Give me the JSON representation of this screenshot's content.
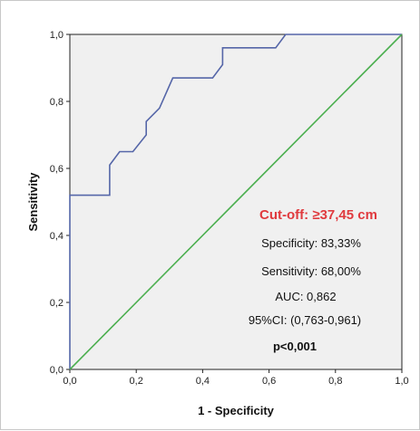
{
  "chart_data": {
    "type": "line",
    "xlabel": "1 - Specificity",
    "ylabel": "Sensitivity",
    "xlim": [
      0,
      1
    ],
    "ylim": [
      0,
      1
    ],
    "xticks": [
      "0,0",
      "0,2",
      "0,4",
      "0,6",
      "0,8",
      "1,0"
    ],
    "yticks": [
      "0,0",
      "0,2",
      "0,4",
      "0,6",
      "0,8",
      "1,0"
    ],
    "grid": false,
    "series": [
      {
        "color": "#5566a8",
        "x": [
          0,
          0,
          0.12,
          0.12,
          0.15,
          0.19,
          0.23,
          0.23,
          0.27,
          0.31,
          0.43,
          0.46,
          0.46,
          0.62,
          0.65,
          1.0
        ],
        "y": [
          0,
          0.52,
          0.52,
          0.61,
          0.65,
          0.65,
          0.7,
          0.74,
          0.78,
          0.87,
          0.87,
          0.91,
          0.96,
          0.96,
          1.0,
          1.0
        ]
      },
      {
        "color": "#4caf50",
        "x": [
          0,
          1
        ],
        "y": [
          0,
          1
        ]
      }
    ],
    "annotations": {
      "cutoff": "Cut-off: ≥37,45 cm",
      "specificity": "Specificity: 83,33%",
      "sensitivity": "Sensitivity: 68,00%",
      "auc": "AUC: 0,862",
      "ci": "95%CI: (0,763-0,961)",
      "p": "p<0,001"
    },
    "colors": {
      "background": "#f0f0f0",
      "cutoff_text": "#e03a3e"
    }
  }
}
